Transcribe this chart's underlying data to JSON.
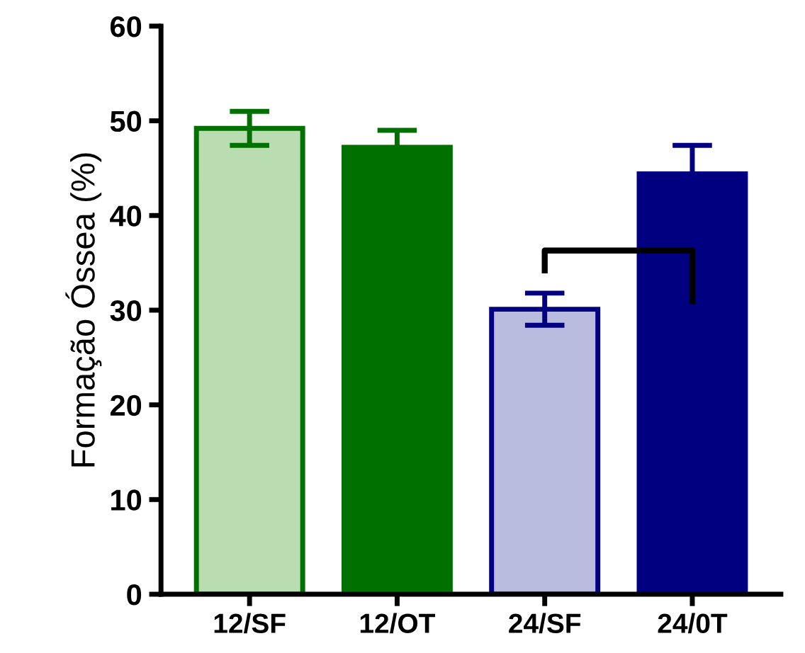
{
  "chart_data": {
    "type": "bar",
    "ylabel": "Formação Óssea (%)",
    "categories": [
      "12/SF",
      "12/OT",
      "24/SF",
      "24/0T"
    ],
    "values": [
      49.2,
      47.2,
      30.1,
      44.4
    ],
    "errors": [
      1.8,
      1.8,
      1.7,
      3.0
    ],
    "colors": [
      "#b9dcb1",
      "#007000",
      "#b9bcdf",
      "#000080"
    ],
    "ylim": [
      0,
      60
    ],
    "yticks": [
      0,
      10,
      20,
      30,
      40,
      50,
      60
    ],
    "grid": false
  }
}
